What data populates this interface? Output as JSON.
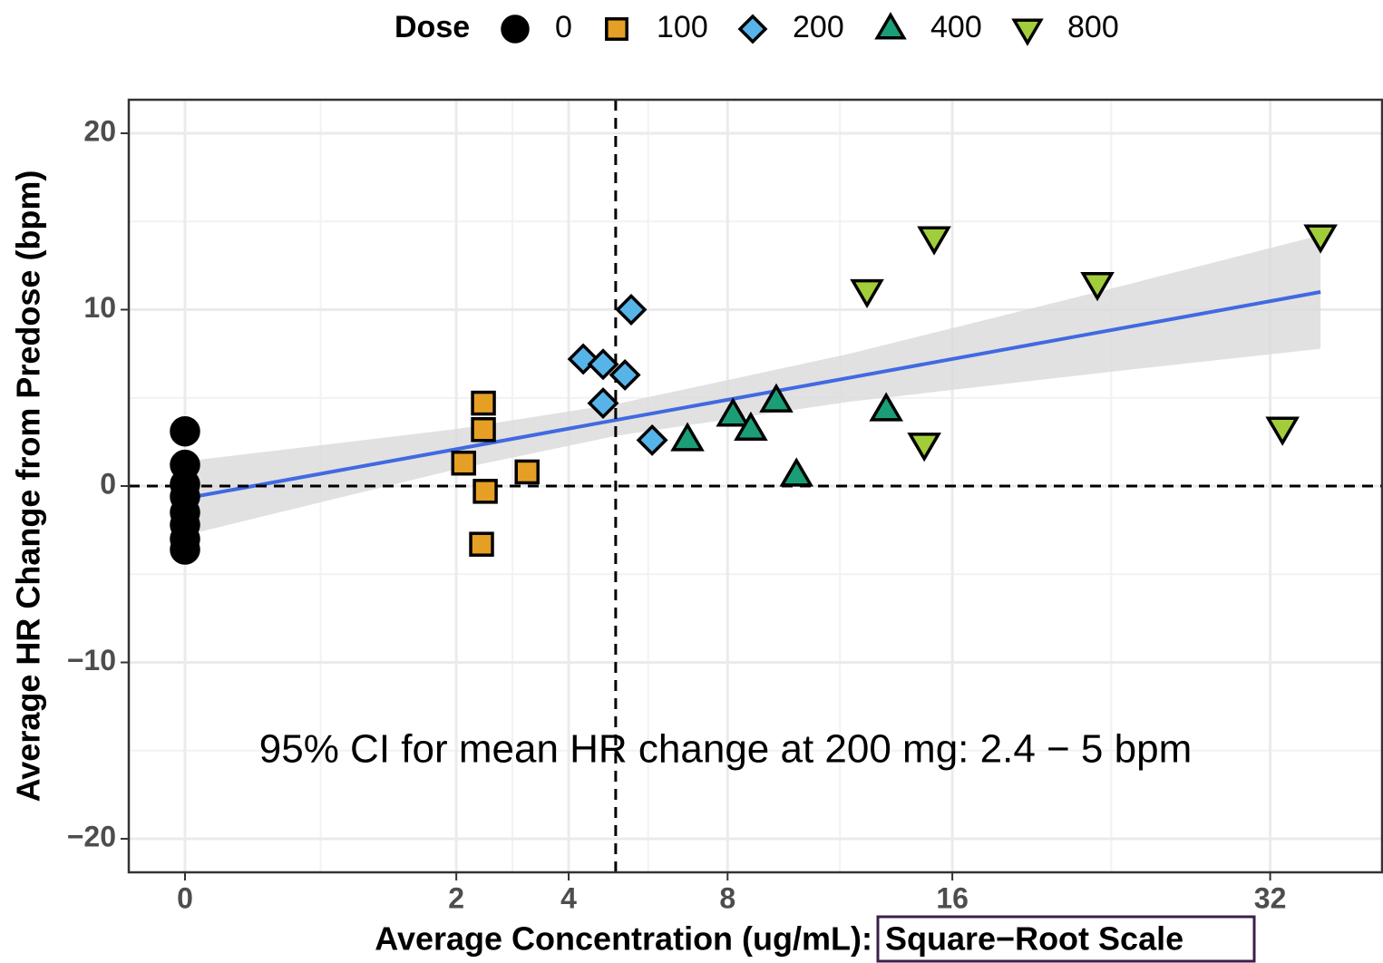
{
  "chart_data": {
    "type": "scatter",
    "xlabel": "Average Concentration (ug/mL):",
    "xlabel_note": "Square−Root Scale",
    "ylabel": "Average HR Change from Predose (bpm)",
    "legend_title": "Dose",
    "annotation": "95% CI for mean HR change at 200 mg: 2.4 − 5 bpm",
    "xscale": "sqrt",
    "xlim": [
      0,
      39
    ],
    "ylim": [
      -21.9,
      21.9
    ],
    "xticks": [
      0,
      2,
      4,
      8,
      16,
      32
    ],
    "yticks": [
      {
        "value": -20,
        "label": "−20"
      },
      {
        "value": -10,
        "label": "−10"
      },
      0,
      10,
      20
    ],
    "grid": true,
    "vline": 5.04,
    "hline": 0,
    "series": [
      {
        "name": "0",
        "color": "#000000",
        "shape": "circle",
        "x": [
          0,
          0,
          0,
          0,
          0,
          0,
          0,
          0
        ],
        "values": [
          3.1,
          1.2,
          0.1,
          -0.6,
          -1.5,
          -2.2,
          -3.0,
          -3.6
        ]
      },
      {
        "name": "100",
        "color": "#e69f25",
        "shape": "square",
        "x": [
          2.11,
          2.42,
          2.42,
          2.45,
          2.39,
          3.18
        ],
        "values": [
          1.3,
          4.7,
          3.2,
          -0.3,
          -3.3,
          0.8
        ]
      },
      {
        "name": "200",
        "color": "#56b4e9",
        "shape": "diamond",
        "x": [
          4.31,
          4.75,
          5.41,
          5.26,
          4.75,
          5.93
        ],
        "values": [
          7.2,
          6.9,
          10.0,
          6.3,
          4.7,
          2.6
        ]
      },
      {
        "name": "400",
        "color": "#1b9e77",
        "shape": "triangle",
        "x": [
          6.86,
          8.16,
          8.7,
          9.5,
          10.16,
          13.36
        ],
        "values": [
          2.6,
          4.0,
          3.2,
          4.8,
          0.6,
          4.3
        ]
      },
      {
        "name": "800",
        "color": "#a2cd3a",
        "shape": "triangle-down",
        "x": [
          12.64,
          15.25,
          14.85,
          22.62,
          32.73,
          35.04
        ],
        "values": [
          11.1,
          14.1,
          2.4,
          11.5,
          3.3,
          14.2
        ]
      }
    ],
    "fit": {
      "color": "#4169e1",
      "band_color": "#d9d9d9",
      "x": [
        0,
        2,
        5.06,
        12,
        24,
        35.04
      ],
      "values": [
        -0.7,
        2.09,
        3.75,
        6.14,
        8.98,
        11.0
      ],
      "lower": [
        -2.8,
        0.95,
        2.85,
        4.78,
        6.57,
        7.78
      ],
      "upper": [
        1.4,
        3.23,
        4.65,
        7.5,
        11.39,
        14.22
      ]
    }
  }
}
